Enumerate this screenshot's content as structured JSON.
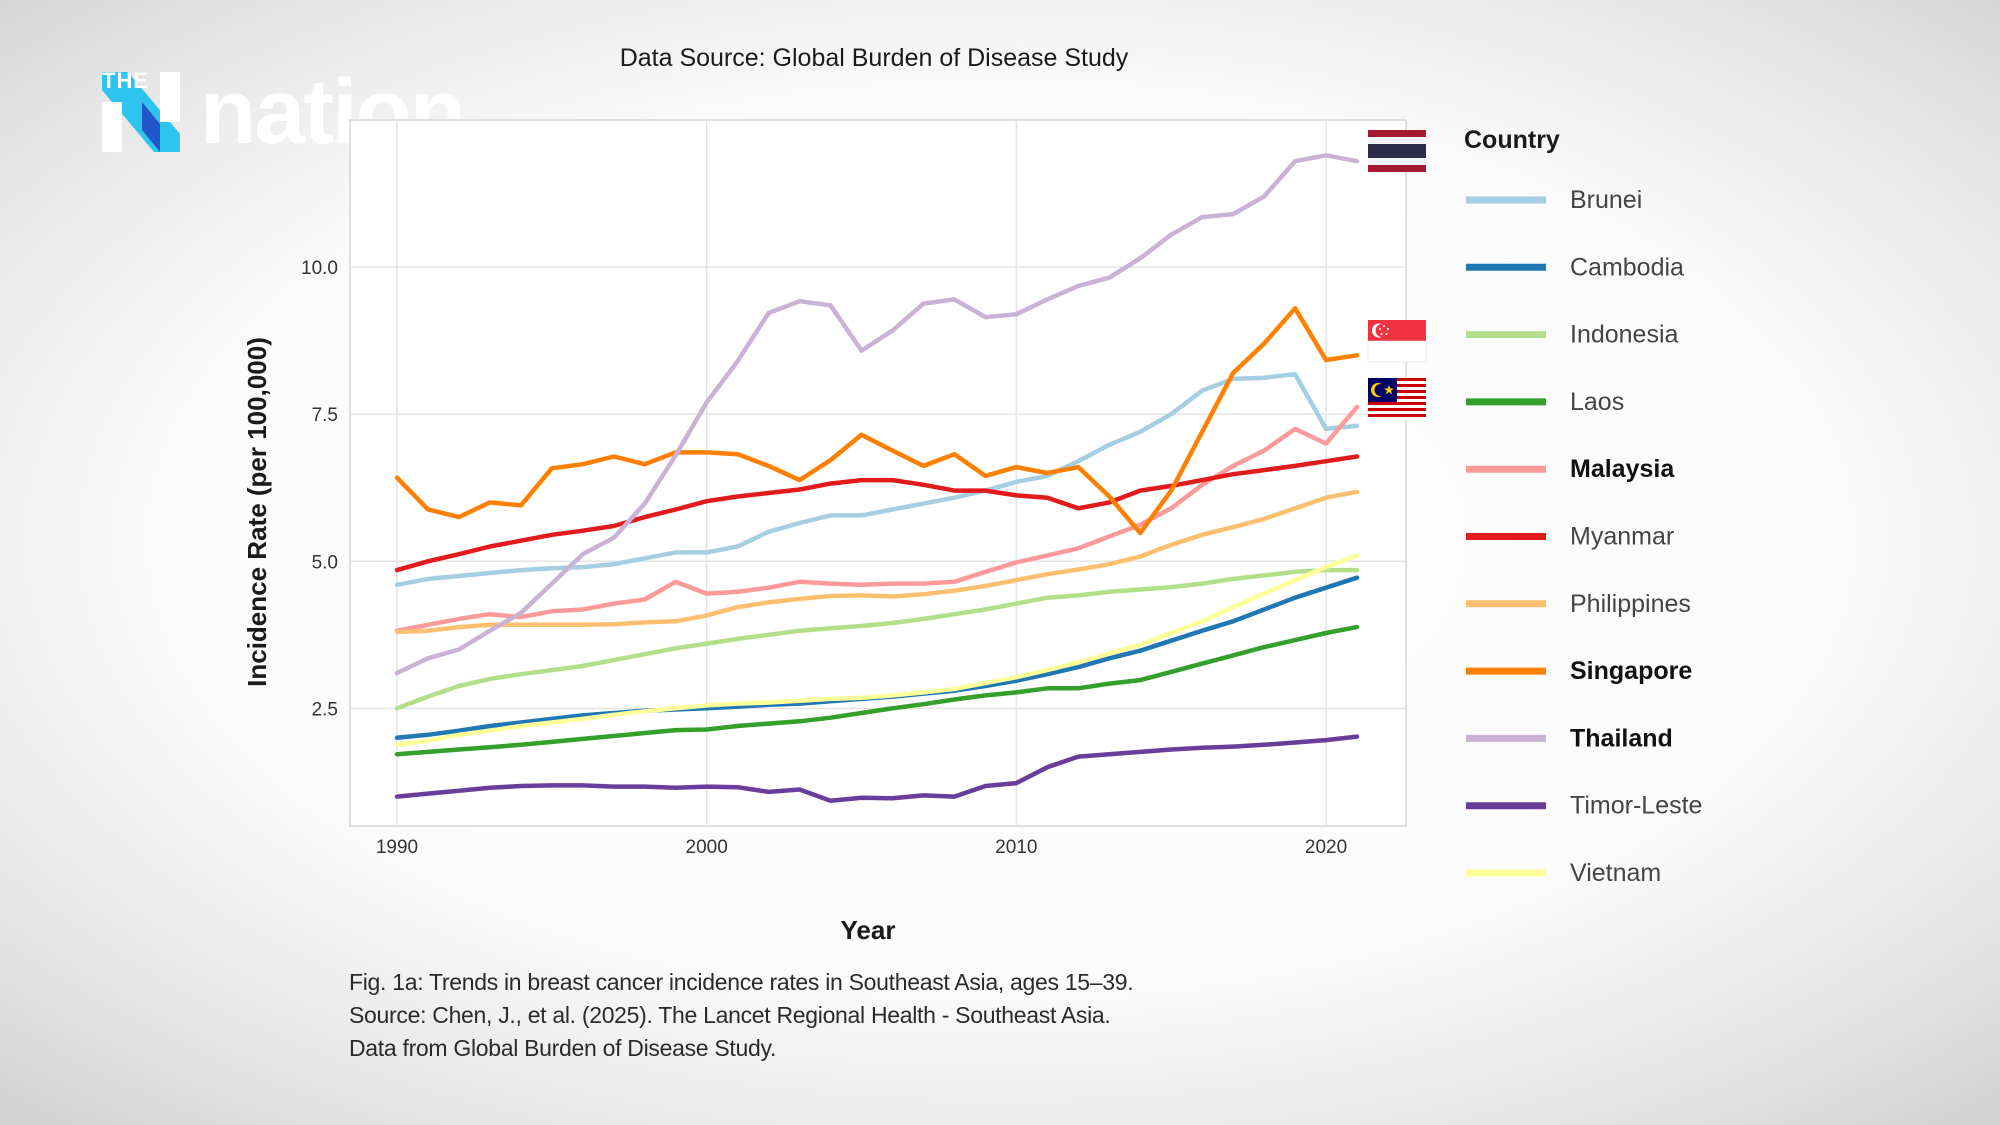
{
  "brand": {
    "the": "THE",
    "name": "nation"
  },
  "header": {
    "source_title": "Data Source: Global Burden of Disease Study"
  },
  "colors": {
    "logo_cyan": "#2fc4ee",
    "logo_blue": "#2356c8",
    "grid": "#e4e4e4",
    "panel_border": "#d6d6d6"
  },
  "chart_data": {
    "type": "line",
    "title": "",
    "xlabel": "Year",
    "ylabel": "Incidence Rate (per 100,000)",
    "xlim": [
      1990,
      2021
    ],
    "ylim": [
      0.5,
      12.5
    ],
    "xticks": [
      1990,
      2000,
      2010,
      2020
    ],
    "yticks": [
      "2.5",
      "5.0",
      "7.5",
      "10.0"
    ],
    "grid": true,
    "legend_title": "Country",
    "legend_position": "right",
    "x": [
      1990,
      1991,
      1992,
      1993,
      1994,
      1995,
      1996,
      1997,
      1998,
      1999,
      2000,
      2001,
      2002,
      2003,
      2004,
      2005,
      2006,
      2007,
      2008,
      2009,
      2010,
      2011,
      2012,
      2013,
      2014,
      2015,
      2016,
      2017,
      2018,
      2019,
      2020,
      2021
    ],
    "series": [
      {
        "name": "Brunei",
        "color": "#a6cee3",
        "bold": false,
        "values": [
          4.6,
          4.7,
          4.75,
          4.8,
          4.85,
          4.88,
          4.9,
          4.95,
          5.05,
          5.15,
          5.15,
          5.25,
          5.5,
          5.65,
          5.78,
          5.78,
          5.88,
          5.98,
          6.08,
          6.2,
          6.35,
          6.45,
          6.7,
          6.98,
          7.2,
          7.5,
          7.9,
          8.1,
          8.12,
          8.18,
          7.25,
          7.3
        ]
      },
      {
        "name": "Cambodia",
        "color": "#1f78b4",
        "bold": false,
        "values": [
          2.0,
          2.05,
          2.12,
          2.2,
          2.26,
          2.32,
          2.38,
          2.42,
          2.46,
          2.48,
          2.5,
          2.53,
          2.56,
          2.58,
          2.62,
          2.66,
          2.7,
          2.75,
          2.8,
          2.88,
          2.97,
          3.08,
          3.2,
          3.35,
          3.48,
          3.65,
          3.82,
          3.98,
          4.18,
          4.38,
          4.55,
          4.72
        ]
      },
      {
        "name": "Indonesia",
        "color": "#b2df8a",
        "bold": false,
        "values": [
          2.5,
          2.7,
          2.88,
          3.0,
          3.08,
          3.15,
          3.22,
          3.32,
          3.42,
          3.52,
          3.6,
          3.68,
          3.75,
          3.82,
          3.86,
          3.9,
          3.95,
          4.02,
          4.1,
          4.18,
          4.28,
          4.38,
          4.42,
          4.48,
          4.52,
          4.56,
          4.62,
          4.7,
          4.76,
          4.82,
          4.85,
          4.85
        ]
      },
      {
        "name": "Laos",
        "color": "#33a02c",
        "bold": false,
        "values": [
          1.72,
          1.76,
          1.8,
          1.84,
          1.88,
          1.93,
          1.98,
          2.03,
          2.08,
          2.13,
          2.14,
          2.2,
          2.24,
          2.28,
          2.34,
          2.42,
          2.5,
          2.57,
          2.65,
          2.72,
          2.77,
          2.84,
          2.84,
          2.92,
          2.98,
          3.12,
          3.26,
          3.4,
          3.54,
          3.66,
          3.78,
          3.88
        ]
      },
      {
        "name": "Malaysia",
        "color": "#fb9a99",
        "bold": true,
        "values": [
          3.82,
          3.92,
          4.02,
          4.1,
          4.05,
          4.15,
          4.18,
          4.28,
          4.35,
          4.65,
          4.45,
          4.48,
          4.55,
          4.65,
          4.62,
          4.6,
          4.62,
          4.62,
          4.65,
          4.82,
          4.98,
          5.1,
          5.22,
          5.42,
          5.62,
          5.9,
          6.3,
          6.62,
          6.88,
          7.25,
          7.0,
          7.62
        ]
      },
      {
        "name": "Myanmar",
        "color": "#e31a1c",
        "bold": false,
        "values": [
          4.85,
          5.0,
          5.12,
          5.25,
          5.35,
          5.45,
          5.52,
          5.6,
          5.75,
          5.88,
          6.02,
          6.1,
          6.16,
          6.22,
          6.32,
          6.38,
          6.38,
          6.3,
          6.2,
          6.2,
          6.12,
          6.08,
          5.9,
          6.0,
          6.2,
          6.28,
          6.38,
          6.48,
          6.55,
          6.62,
          6.7,
          6.78
        ]
      },
      {
        "name": "Philippines",
        "color": "#fdbf6f",
        "bold": false,
        "values": [
          3.8,
          3.82,
          3.88,
          3.92,
          3.92,
          3.92,
          3.92,
          3.93,
          3.96,
          3.98,
          4.08,
          4.22,
          4.3,
          4.36,
          4.41,
          4.42,
          4.4,
          4.44,
          4.5,
          4.58,
          4.68,
          4.78,
          4.86,
          4.95,
          5.08,
          5.28,
          5.45,
          5.58,
          5.72,
          5.9,
          6.08,
          6.18
        ]
      },
      {
        "name": "Singapore",
        "color": "#ff7f00",
        "bold": true,
        "values": [
          6.42,
          5.88,
          5.75,
          6.0,
          5.95,
          6.58,
          6.65,
          6.78,
          6.65,
          6.85,
          6.85,
          6.82,
          6.62,
          6.38,
          6.72,
          7.15,
          6.88,
          6.62,
          6.82,
          6.45,
          6.6,
          6.5,
          6.6,
          6.1,
          5.48,
          6.2,
          7.2,
          8.2,
          8.7,
          9.3,
          8.42,
          8.5
        ]
      },
      {
        "name": "Thailand",
        "color": "#cab2d6",
        "bold": true,
        "values": [
          3.1,
          3.35,
          3.5,
          3.82,
          4.12,
          4.62,
          5.12,
          5.4,
          5.98,
          6.8,
          7.7,
          8.4,
          9.22,
          9.42,
          9.35,
          8.58,
          8.92,
          9.38,
          9.45,
          9.15,
          9.2,
          9.45,
          9.68,
          9.82,
          10.15,
          10.55,
          10.85,
          10.9,
          11.2,
          11.8,
          11.9,
          11.8
        ]
      },
      {
        "name": "Timor-Leste",
        "color": "#6a3d9a",
        "bold": false,
        "values": [
          1.0,
          1.05,
          1.1,
          1.15,
          1.18,
          1.19,
          1.19,
          1.17,
          1.17,
          1.15,
          1.17,
          1.16,
          1.08,
          1.12,
          0.93,
          0.98,
          0.97,
          1.02,
          1.0,
          1.18,
          1.23,
          1.5,
          1.68,
          1.72,
          1.76,
          1.8,
          1.83,
          1.85,
          1.88,
          1.92,
          1.96,
          2.02
        ]
      },
      {
        "name": "Vietnam",
        "color": "#ffff99",
        "bold": false,
        "values": [
          1.88,
          1.95,
          2.05,
          2.12,
          2.2,
          2.26,
          2.32,
          2.39,
          2.45,
          2.5,
          2.55,
          2.58,
          2.6,
          2.63,
          2.66,
          2.68,
          2.72,
          2.77,
          2.83,
          2.93,
          3.03,
          3.15,
          3.28,
          3.43,
          3.58,
          3.78,
          3.98,
          4.22,
          4.45,
          4.68,
          4.9,
          5.1
        ]
      }
    ],
    "flags": [
      {
        "country": "Thailand",
        "icon": "thailand-flag-icon"
      },
      {
        "country": "Singapore",
        "icon": "singapore-flag-icon"
      },
      {
        "country": "Malaysia",
        "icon": "malaysia-flag-icon"
      }
    ]
  },
  "caption": {
    "line1": "Fig. 1a: Trends in breast cancer incidence rates in Southeast Asia, ages 15–39.",
    "line2": "Source: Chen, J., et al. (2025). The Lancet Regional Health - Southeast Asia.",
    "line3": "Data from Global Burden of Disease Study."
  }
}
